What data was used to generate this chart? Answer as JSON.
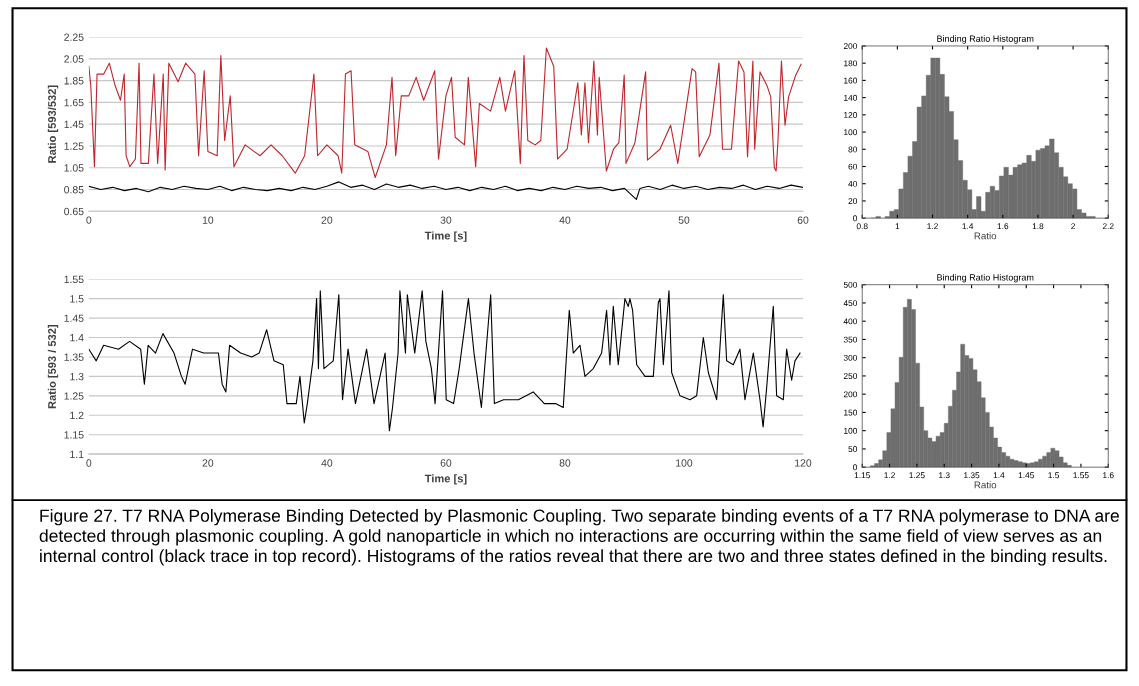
{
  "chart_data": [
    {
      "type": "line",
      "xlabel": "Time [s]",
      "ylabel": "Ratio [593/532]",
      "xlim": [
        0,
        60
      ],
      "ylim": [
        0.65,
        2.25
      ],
      "xticks": [
        0,
        10,
        20,
        30,
        40,
        50,
        60
      ],
      "yticks": [
        0.65,
        0.85,
        1.05,
        1.25,
        1.45,
        1.65,
        1.85,
        2.05,
        2.25
      ],
      "grid": "y",
      "annotations": [
        "Figure 27. T7 RNA Polymerase Binding Detected by Plasmonic Coupling. Two separate binding events of a T7 RNA polymerase to DNA are detected through plasmonic coupling. A gold nanoparticle in which no interactions are occurring within the same field of view serves as an internal control (black trace in top record). Histograms of the ratios reveal that there are two and three states defined in the binding results."
      ],
      "series": [
        {
          "color": "#c0262c",
          "x": [
            0,
            0.16,
            0.47,
            0.69,
            1.25,
            1.72,
            2.19,
            2.66,
            2.97,
            3.13,
            3.44,
            3.91,
            4.22,
            4.38,
            5.0,
            5.47,
            5.78,
            6.25,
            6.41,
            6.72,
            7.5,
            8.13,
            8.91,
            9.22,
            9.69,
            10.0,
            10.78,
            11.09,
            11.41,
            11.88,
            12.19,
            13.13,
            14.38,
            15.31,
            16.25,
            17.34,
            18.13,
            18.91,
            19.22,
            20.0,
            20.94,
            21.25,
            21.56,
            22.03,
            22.34,
            23.44,
            24.06,
            25.0,
            25.47,
            25.78,
            26.25,
            26.88,
            27.5,
            28.13,
            29.06,
            29.38,
            30.0,
            30.47,
            30.78,
            31.56,
            31.88,
            32.5,
            32.81,
            33.75,
            34.53,
            35.0,
            35.78,
            36.25,
            36.56,
            36.88,
            37.5,
            37.97,
            38.44,
            39.06,
            39.38,
            40.18,
            41.08,
            41.38,
            41.68,
            41.98,
            42.43,
            42.73,
            42.88,
            43.48,
            44.08,
            44.53,
            44.98,
            45.13,
            45.88,
            46.78,
            46.93,
            47.98,
            48.88,
            49.48,
            50.68,
            50.98,
            51.28,
            52.18,
            52.94,
            53.24,
            53.99,
            54.59,
            55.04,
            55.34,
            55.79,
            55.94,
            56.39,
            56.99,
            57.29,
            57.59,
            57.74,
            57.89,
            58.19,
            58.49,
            58.79,
            59.39,
            59.84
          ],
          "values": [
            1.98,
            1.81,
            1.06,
            1.91,
            1.91,
            2.01,
            1.81,
            1.67,
            1.91,
            1.16,
            1.06,
            1.13,
            2.01,
            1.09,
            1.09,
            1.91,
            1.09,
            1.91,
            1.03,
            2.01,
            1.84,
            2.01,
            1.91,
            1.16,
            1.94,
            1.2,
            1.16,
            2.08,
            1.3,
            1.71,
            1.06,
            1.26,
            1.16,
            1.26,
            1.16,
            1.0,
            1.16,
            1.91,
            1.16,
            1.26,
            1.16,
            1.0,
            1.91,
            1.94,
            1.26,
            1.2,
            0.96,
            1.26,
            1.88,
            1.16,
            1.71,
            1.71,
            1.88,
            1.67,
            1.94,
            1.13,
            1.71,
            1.88,
            1.33,
            1.26,
            1.88,
            1.06,
            1.64,
            1.57,
            1.88,
            1.57,
            1.94,
            1.09,
            2.08,
            1.3,
            1.26,
            1.3,
            2.15,
            1.98,
            1.13,
            1.22,
            1.83,
            1.35,
            1.83,
            1.28,
            2.03,
            1.35,
            1.88,
            1.02,
            1.22,
            1.28,
            1.9,
            1.09,
            1.28,
            1.93,
            1.12,
            1.22,
            1.44,
            1.09,
            1.96,
            1.93,
            1.15,
            1.35,
            2.01,
            1.22,
            1.22,
            2.03,
            1.93,
            1.15,
            2.03,
            1.22,
            1.93,
            1.8,
            1.7,
            1.05,
            1.02,
            1.28,
            2.03,
            1.44,
            1.7,
            1.9,
            2.0
          ]
        },
        {
          "color": "#000000",
          "x": [
            0,
            1,
            2,
            3,
            4,
            5,
            6,
            7,
            8,
            9,
            10,
            11,
            12,
            13,
            14,
            15,
            16,
            17,
            18,
            19,
            20,
            21,
            22,
            23,
            24,
            25,
            26,
            27,
            28,
            29,
            30,
            31,
            32,
            33,
            34,
            35,
            36,
            37,
            38,
            39,
            40,
            41,
            42,
            43,
            44,
            45,
            46,
            46.3,
            47,
            48,
            49,
            50,
            51,
            52,
            53,
            54,
            55,
            56,
            57,
            58,
            59,
            60
          ],
          "values": [
            0.88,
            0.85,
            0.87,
            0.84,
            0.86,
            0.83,
            0.87,
            0.85,
            0.88,
            0.86,
            0.85,
            0.88,
            0.84,
            0.87,
            0.85,
            0.84,
            0.86,
            0.84,
            0.87,
            0.85,
            0.88,
            0.92,
            0.87,
            0.89,
            0.85,
            0.9,
            0.87,
            0.89,
            0.86,
            0.88,
            0.85,
            0.87,
            0.84,
            0.87,
            0.85,
            0.88,
            0.84,
            0.86,
            0.84,
            0.87,
            0.85,
            0.88,
            0.86,
            0.87,
            0.84,
            0.86,
            0.76,
            0.86,
            0.88,
            0.85,
            0.89,
            0.86,
            0.88,
            0.85,
            0.87,
            0.86,
            0.89,
            0.85,
            0.88,
            0.86,
            0.89,
            0.87
          ]
        }
      ]
    },
    {
      "type": "histogram",
      "title": "Binding Ratio Histogram",
      "xlabel": "Ratio",
      "xlim": [
        0.8,
        2.2
      ],
      "ylim": [
        0,
        200
      ],
      "xticks": [
        0.8,
        1,
        1.2,
        1.4,
        1.6,
        1.8,
        2,
        2.2
      ],
      "yticks": [
        0,
        20,
        40,
        60,
        80,
        100,
        120,
        140,
        160,
        180,
        200
      ],
      "color": "#6e6e6e",
      "bins": [
        0.8,
        0.826,
        0.852,
        0.878,
        0.904,
        0.93,
        0.956,
        0.982,
        1.008,
        1.034,
        1.06,
        1.086,
        1.112,
        1.138,
        1.164,
        1.19,
        1.216,
        1.242,
        1.268,
        1.294,
        1.32,
        1.346,
        1.372,
        1.398,
        1.424,
        1.45,
        1.476,
        1.502,
        1.528,
        1.554,
        1.58,
        1.606,
        1.632,
        1.658,
        1.684,
        1.71,
        1.736,
        1.762,
        1.788,
        1.814,
        1.84,
        1.866,
        1.892,
        1.918,
        1.944,
        1.97,
        1.996,
        2.022,
        2.048,
        2.074,
        2.1,
        2.126
      ],
      "values": [
        null,
        null,
        0,
        2,
        null,
        2,
        8,
        10,
        34,
        53,
        72,
        89,
        129,
        142,
        166,
        186,
        186,
        167,
        141,
        124,
        91,
        67,
        44,
        33,
        10,
        25,
        8,
        30,
        37,
        32,
        49,
        59,
        50,
        59,
        62,
        64,
        73,
        66,
        79,
        81,
        84,
        92,
        76,
        59,
        48,
        40,
        34,
        10,
        6,
        2,
        2
      ]
    },
    {
      "type": "line",
      "xlabel": "Time [s]",
      "ylabel": "Ratio [593 / 532]",
      "xlim": [
        0,
        120
      ],
      "ylim": [
        1.1,
        1.55
      ],
      "xticks": [
        0,
        20,
        40,
        60,
        80,
        100,
        120
      ],
      "yticks": [
        1.1,
        1.15,
        1.2,
        1.25,
        1.3,
        1.35,
        1.4,
        1.45,
        1.5,
        1.55
      ],
      "grid": "y",
      "series": [
        {
          "color": "#000000",
          "x": [
            0,
            1.24,
            2.49,
            4.98,
            6.85,
            8.71,
            9.33,
            9.96,
            11.2,
            12.45,
            14.31,
            15.56,
            16.18,
            17.42,
            19.29,
            21.78,
            22.4,
            23.02,
            23.65,
            25.51,
            27.38,
            28.62,
            29.87,
            31.11,
            32.67,
            33.29,
            34.85,
            35.47,
            36.2,
            36.71,
            37.65,
            38.27,
            38.58,
            38.89,
            39.51,
            41.07,
            42.0,
            42.63,
            43.56,
            44.8,
            46.67,
            47.92,
            49.78,
            50.5,
            51.03,
            51.96,
            52.27,
            53.2,
            53.52,
            54.76,
            56.01,
            56.63,
            57.56,
            58.18,
            59.43,
            60.05,
            61.29,
            62.23,
            63.78,
            64.72,
            65.96,
            67.52,
            68.14,
            69.69,
            72.18,
            74.67,
            76.54,
            78.41,
            79.72,
            80.73,
            81.4,
            82.52,
            83.36,
            84.76,
            86.16,
            87.0,
            87.56,
            88.12,
            88.96,
            90.08,
            90.64,
            90.92,
            91.37,
            92.05,
            93.45,
            94.85,
            95.69,
            95.97,
            96.53,
            97.48,
            97.93,
            99.33,
            101.01,
            102.13,
            103.25,
            104.09,
            105.49,
            106.61,
            107.17,
            108.29,
            109.41,
            110.25,
            111.65,
            112.77,
            113.3,
            113.89,
            115.01,
            115.57,
            116.69,
            117.25,
            118.09,
            118.65,
            119.5
          ],
          "values": [
            1.37,
            1.34,
            1.38,
            1.37,
            1.39,
            1.37,
            1.28,
            1.38,
            1.36,
            1.41,
            1.36,
            1.3,
            1.28,
            1.37,
            1.36,
            1.36,
            1.28,
            1.26,
            1.38,
            1.36,
            1.35,
            1.36,
            1.42,
            1.34,
            1.33,
            1.23,
            1.23,
            1.3,
            1.18,
            1.23,
            1.34,
            1.5,
            1.32,
            1.52,
            1.32,
            1.34,
            1.51,
            1.24,
            1.37,
            1.23,
            1.37,
            1.23,
            1.36,
            1.16,
            1.22,
            1.36,
            1.52,
            1.36,
            1.51,
            1.36,
            1.52,
            1.39,
            1.32,
            1.23,
            1.52,
            1.24,
            1.23,
            1.32,
            1.5,
            1.36,
            1.22,
            1.51,
            1.23,
            1.24,
            1.24,
            1.26,
            1.23,
            1.23,
            1.22,
            1.47,
            1.36,
            1.38,
            1.3,
            1.32,
            1.36,
            1.47,
            1.33,
            1.48,
            1.33,
            1.5,
            1.48,
            1.5,
            1.47,
            1.33,
            1.3,
            1.3,
            1.49,
            1.5,
            1.33,
            1.52,
            1.31,
            1.25,
            1.24,
            1.25,
            1.4,
            1.31,
            1.24,
            1.51,
            1.34,
            1.33,
            1.37,
            1.24,
            1.36,
            1.24,
            1.17,
            1.27,
            1.48,
            1.25,
            1.24,
            1.37,
            1.29,
            1.34,
            1.36
          ]
        }
      ]
    },
    {
      "type": "histogram",
      "title": "Binding Ratio Histogram",
      "xlabel": "Ratio",
      "xlim": [
        1.15,
        1.6
      ],
      "ylim": [
        0,
        500
      ],
      "xticks": [
        1.15,
        1.2,
        1.25,
        1.3,
        1.35,
        1.4,
        1.45,
        1.5,
        1.55,
        1.6
      ],
      "yticks": [
        0,
        50,
        100,
        150,
        200,
        250,
        300,
        350,
        400,
        450,
        500
      ],
      "color": "#6e6e6e",
      "bins": [
        1.165,
        1.1725,
        1.18,
        1.1875,
        1.195,
        1.2025,
        1.21,
        1.2175,
        1.225,
        1.2325,
        1.24,
        1.2475,
        1.255,
        1.2625,
        1.27,
        1.2775,
        1.285,
        1.2925,
        1.3,
        1.3075,
        1.315,
        1.3225,
        1.33,
        1.3375,
        1.345,
        1.3525,
        1.36,
        1.3675,
        1.375,
        1.3825,
        1.39,
        1.3975,
        1.405,
        1.4125,
        1.42,
        1.4275,
        1.435,
        1.4425,
        1.45,
        1.4575,
        1.465,
        1.4725,
        1.48,
        1.4875,
        1.495,
        1.5025,
        1.51,
        1.5175,
        1.525,
        1.5325,
        1.54
      ],
      "values": [
        4,
        10,
        20,
        45,
        95,
        160,
        232,
        301,
        438,
        460,
        432,
        285,
        165,
        100,
        80,
        70,
        85,
        95,
        120,
        167,
        211,
        261,
        337,
        306,
        298,
        267,
        234,
        190,
        150,
        110,
        80,
        55,
        40,
        30,
        22,
        18,
        15,
        12,
        10,
        12,
        15,
        22,
        30,
        40,
        52,
        45,
        28,
        12,
        5,
        null
      ]
    }
  ]
}
